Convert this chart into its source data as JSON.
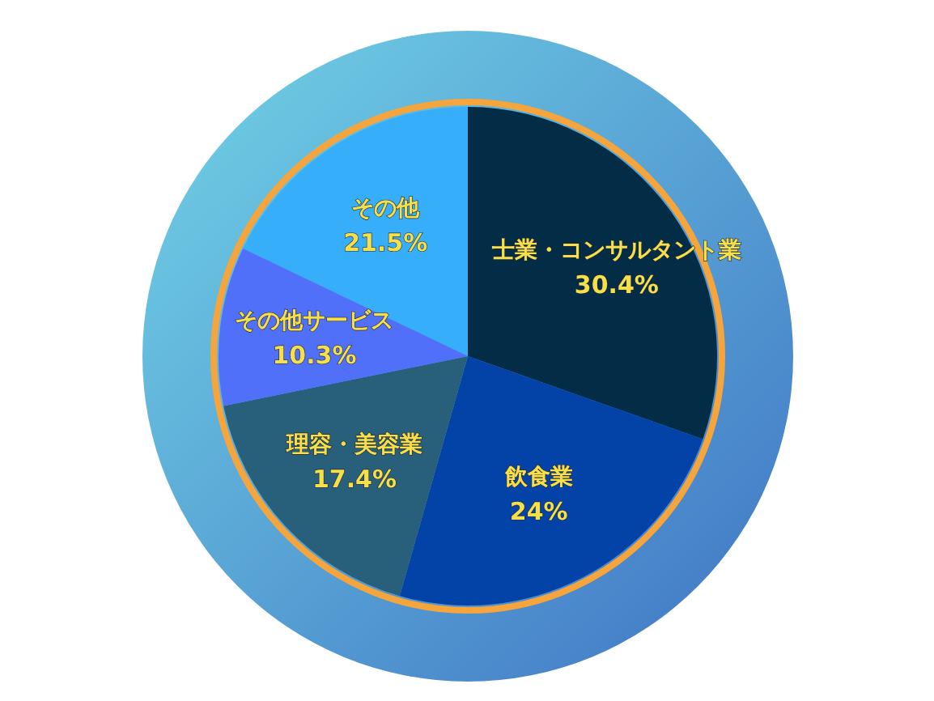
{
  "chart_data": {
    "type": "pie",
    "categories": [
      "士業・コンサルタント業",
      "飲食業",
      "理容・美容業",
      "その他サービス",
      "その他"
    ],
    "values": [
      30.4,
      24,
      17.4,
      10.3,
      21.5
    ],
    "value_labels": [
      "30.4%",
      "24%",
      "17.4%",
      "10.3%",
      "21.5%"
    ],
    "data_labels": true,
    "colors": [
      "#032d47",
      "#0343a8",
      "#285f7a",
      "#5170fa",
      "#36aefa"
    ]
  }
}
